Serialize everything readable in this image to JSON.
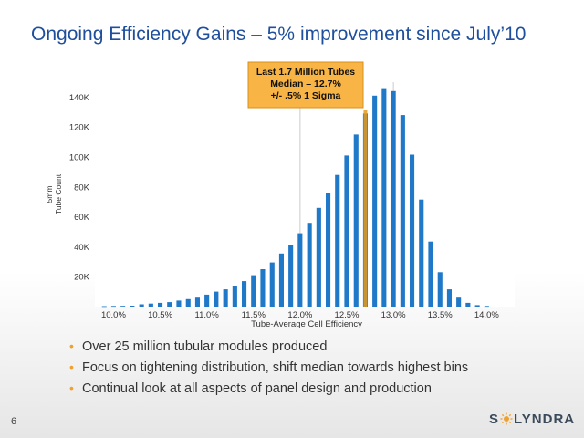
{
  "slide": {
    "title": "Ongoing Efficiency Gains – 5% improvement since July’10",
    "page_number": "6",
    "logo_text_left": "S",
    "logo_text_right": "LYNDRA",
    "bullets": [
      "Over 25 million tubular modules produced",
      "Focus on tightening distribution, shift median towards highest bins",
      "Continual look at all aspects of panel design and production"
    ]
  },
  "colors": {
    "title": "#1f4f9c",
    "bar": "#1f78c8",
    "median_line": "#e89a1a",
    "callout_bg": "#f8b445",
    "callout_border": "#d8901a",
    "bullet": "#f0a030"
  },
  "chart_data": {
    "type": "bar",
    "xlabel": "Tube-Average Cell Efficiency",
    "ylabel": "Tube Count",
    "ylabel_prefix": "5mm",
    "ylim": [
      0,
      150000
    ],
    "xlim": [
      9.8,
      14.3
    ],
    "yticks": [
      {
        "value": 20000,
        "label": "20K"
      },
      {
        "value": 40000,
        "label": "40K"
      },
      {
        "value": 60000,
        "label": "60K"
      },
      {
        "value": 80000,
        "label": "80K"
      },
      {
        "value": 100000,
        "label": "100K"
      },
      {
        "value": 120000,
        "label": "120K"
      },
      {
        "value": 140000,
        "label": "140K"
      }
    ],
    "xticks": [
      {
        "value": 10.0,
        "label": "10.0%"
      },
      {
        "value": 10.5,
        "label": "10.5%"
      },
      {
        "value": 11.0,
        "label": "11.0%"
      },
      {
        "value": 11.5,
        "label": "11.5%"
      },
      {
        "value": 12.0,
        "label": "12.0%"
      },
      {
        "value": 12.5,
        "label": "12.5%"
      },
      {
        "value": 13.0,
        "label": "13.0%"
      },
      {
        "value": 13.5,
        "label": "13.5%"
      },
      {
        "value": 14.0,
        "label": "14.0%"
      }
    ],
    "vertical_gridlines_at": [
      12.0,
      13.0
    ],
    "bins": [
      9.9,
      10.0,
      10.1,
      10.2,
      10.3,
      10.4,
      10.5,
      10.6,
      10.7,
      10.8,
      10.9,
      11.0,
      11.1,
      11.2,
      11.3,
      11.4,
      11.5,
      11.6,
      11.7,
      11.8,
      11.9,
      12.0,
      12.1,
      12.2,
      12.3,
      12.4,
      12.5,
      12.6,
      12.7,
      12.8,
      12.9,
      13.0,
      13.1,
      13.2,
      13.3,
      13.4,
      13.5,
      13.6,
      13.7,
      13.8,
      13.9,
      14.0
    ],
    "values": [
      300,
      400,
      500,
      600,
      1500,
      2000,
      2500,
      3000,
      4000,
      5000,
      6000,
      8000,
      10000,
      11500,
      14000,
      17000,
      21000,
      25000,
      29500,
      35500,
      41000,
      49000,
      56000,
      66000,
      76000,
      88000,
      101000,
      115000,
      129000,
      141000,
      146000,
      144000,
      128000,
      101500,
      71500,
      43500,
      23000,
      11500,
      6000,
      2500,
      1000,
      400
    ],
    "median": 12.7,
    "callout": {
      "lines": [
        "Last 1.7 Million Tubes",
        "Median – 12.7%",
        "+/-  .5% 1 Sigma"
      ]
    }
  }
}
